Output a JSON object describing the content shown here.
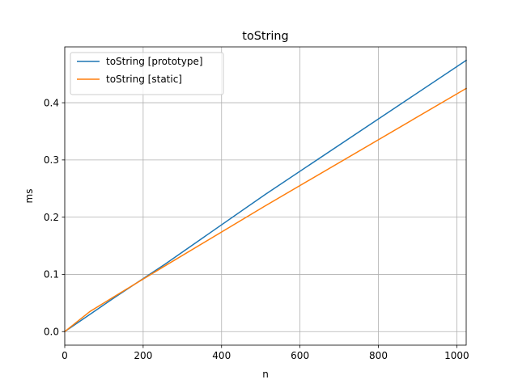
{
  "chart_data": {
    "type": "line",
    "title": "toString",
    "xlabel": "n",
    "ylabel": "ms",
    "xlim": [
      0,
      1024
    ],
    "ylim": [
      -0.0237,
      0.4976
    ],
    "xticks": [
      0,
      200,
      400,
      600,
      800,
      1000
    ],
    "xtick_labels": [
      "0",
      "200",
      "400",
      "600",
      "800",
      "1000"
    ],
    "yticks": [
      0.0,
      0.1,
      0.2,
      0.3,
      0.4
    ],
    "ytick_labels": [
      "0.0",
      "0.1",
      "0.2",
      "0.3",
      "0.4"
    ],
    "grid": true,
    "legend_position": "top-left",
    "series": [
      {
        "name": "toString [prototype]",
        "color": "#1f77b4",
        "x": [
          0,
          64,
          128,
          256,
          512,
          1024
        ],
        "y": [
          0.0,
          0.03,
          0.06,
          0.118,
          0.24,
          0.474
        ]
      },
      {
        "name": "toString [static]",
        "color": "#ff7f0e",
        "x": [
          0,
          64,
          128,
          256,
          512,
          1024
        ],
        "y": [
          0.0,
          0.035,
          0.062,
          0.115,
          0.22,
          0.425
        ]
      }
    ]
  }
}
